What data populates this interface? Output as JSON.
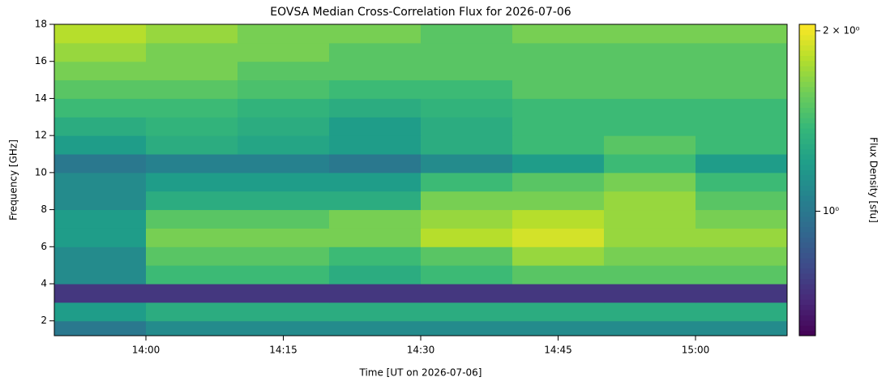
{
  "chart_data": {
    "type": "heatmap",
    "title": "EOVSA Median Cross-Correlation Flux for 2026-07-06",
    "xlabel": "Time [UT on 2026-07-06]",
    "ylabel": "Frequency [GHz]",
    "colorbar_label": "Flux Density [sfu]",
    "colormap": "viridis",
    "color_scale": "log",
    "xbins": [
      830,
      840,
      850,
      860,
      870,
      880,
      890,
      900,
      910
    ],
    "ybins": [
      1.2,
      2,
      3,
      4,
      5,
      6,
      7,
      8,
      9,
      10,
      11,
      12,
      13,
      14,
      15,
      16,
      17,
      18
    ],
    "values": [
      [
        1.0,
        1.1,
        1.1,
        1.1,
        1.1,
        1.1,
        1.1,
        1.1
      ],
      [
        1.2,
        1.3,
        1.3,
        1.3,
        1.3,
        1.3,
        1.3,
        1.3
      ],
      [
        0.75,
        0.75,
        0.75,
        0.75,
        0.75,
        0.75,
        0.75,
        0.75
      ],
      [
        1.1,
        1.4,
        1.4,
        1.3,
        1.4,
        1.5,
        1.5,
        1.5
      ],
      [
        1.1,
        1.5,
        1.5,
        1.4,
        1.5,
        1.7,
        1.6,
        1.6
      ],
      [
        1.2,
        1.6,
        1.6,
        1.6,
        1.8,
        1.9,
        1.7,
        1.7
      ],
      [
        1.2,
        1.5,
        1.5,
        1.6,
        1.7,
        1.8,
        1.7,
        1.6
      ],
      [
        1.1,
        1.3,
        1.3,
        1.3,
        1.6,
        1.6,
        1.7,
        1.5
      ],
      [
        1.1,
        1.2,
        1.2,
        1.2,
        1.4,
        1.5,
        1.6,
        1.4
      ],
      [
        1.0,
        1.05,
        1.05,
        1.0,
        1.1,
        1.2,
        1.4,
        1.2
      ],
      [
        1.2,
        1.3,
        1.25,
        1.2,
        1.3,
        1.4,
        1.5,
        1.4
      ],
      [
        1.3,
        1.35,
        1.3,
        1.2,
        1.3,
        1.4,
        1.4,
        1.4
      ],
      [
        1.4,
        1.4,
        1.35,
        1.3,
        1.35,
        1.4,
        1.4,
        1.4
      ],
      [
        1.5,
        1.5,
        1.45,
        1.4,
        1.4,
        1.5,
        1.5,
        1.5
      ],
      [
        1.6,
        1.6,
        1.5,
        1.5,
        1.5,
        1.5,
        1.5,
        1.5
      ],
      [
        1.7,
        1.6,
        1.6,
        1.5,
        1.5,
        1.5,
        1.5,
        1.5
      ],
      [
        1.8,
        1.7,
        1.6,
        1.6,
        1.5,
        1.6,
        1.6,
        1.6
      ]
    ],
    "xlim": [
      830,
      910
    ],
    "xticks": [
      {
        "value": 840,
        "label": "14:00"
      },
      {
        "value": 855,
        "label": "14:15"
      },
      {
        "value": 870,
        "label": "14:30"
      },
      {
        "value": 885,
        "label": "14:45"
      },
      {
        "value": 900,
        "label": "15:00"
      }
    ],
    "ylim": [
      1.2,
      18
    ],
    "yticks": [
      2,
      4,
      6,
      8,
      10,
      12,
      14,
      16,
      18
    ],
    "clim": [
      0.62,
      2.05
    ],
    "cticks": [
      {
        "value": 1,
        "label": "10⁰"
      },
      {
        "value": 2,
        "label": "2 × 10⁰"
      }
    ]
  }
}
